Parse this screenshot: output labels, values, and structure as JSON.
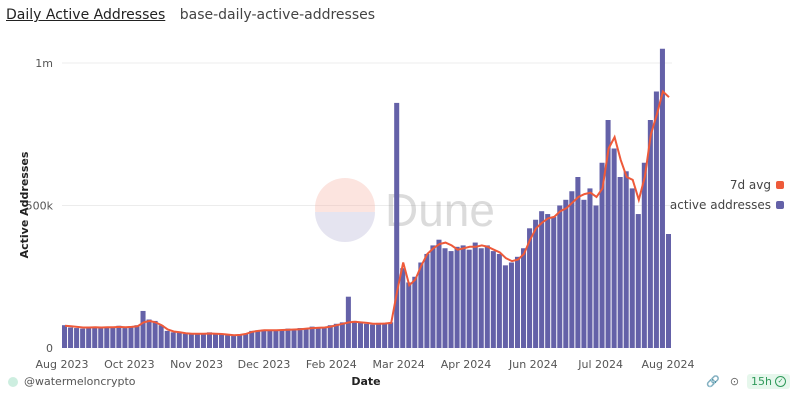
{
  "header": {
    "title": "Daily Active Addresses",
    "subtitle": "base-daily-active-addresses"
  },
  "footer": {
    "user": "@watermeloncrypto",
    "refresh_age": "15h",
    "icons": [
      "link-icon",
      "camera-icon",
      "check-circle-icon"
    ]
  },
  "watermark": "Dune",
  "colors": {
    "bars": "#6461a8",
    "avg": "#ee5a3a",
    "grid": "#ececec"
  },
  "chart_data": {
    "type": "bar",
    "title": "Daily Active Addresses",
    "xlabel": "Date",
    "ylabel": "Active Addresses",
    "ylim": [
      0,
      1050000
    ],
    "y_ticks": [
      {
        "value": 0,
        "label": "0"
      },
      {
        "value": 500000,
        "label": "500k"
      },
      {
        "value": 1000000,
        "label": "1m"
      }
    ],
    "x_ticks": [
      "Aug 2023",
      "Oct 2023",
      "Nov 2023",
      "Dec 2023",
      "Feb 2024",
      "Mar 2024",
      "Apr 2024",
      "Jun 2024",
      "Jul 2024",
      "Aug 2024"
    ],
    "grid": true,
    "legend_position": "right",
    "legend": [
      "7d avg",
      "active addresses"
    ],
    "series": [
      {
        "name": "active addresses",
        "type": "bar",
        "values": [
          80000,
          72000,
          70000,
          68000,
          72000,
          75000,
          70000,
          74000,
          72000,
          78000,
          70000,
          75000,
          80000,
          130000,
          100000,
          95000,
          80000,
          60000,
          55000,
          55000,
          50000,
          52000,
          48000,
          50000,
          55000,
          52000,
          48000,
          45000,
          42000,
          45000,
          50000,
          60000,
          62000,
          65000,
          62000,
          60000,
          65000,
          68000,
          62000,
          70000,
          68000,
          75000,
          72000,
          70000,
          80000,
          85000,
          90000,
          180000,
          95000,
          88000,
          85000,
          82000,
          88000,
          85000,
          90000,
          860000,
          280000,
          230000,
          250000,
          300000,
          330000,
          360000,
          380000,
          350000,
          340000,
          355000,
          360000,
          345000,
          370000,
          350000,
          360000,
          340000,
          330000,
          290000,
          300000,
          320000,
          350000,
          420000,
          450000,
          480000,
          470000,
          460000,
          500000,
          520000,
          550000,
          600000,
          520000,
          560000,
          500000,
          650000,
          800000,
          700000,
          600000,
          620000,
          560000,
          470000,
          650000,
          800000,
          900000,
          1050000,
          400000
        ]
      },
      {
        "name": "7d avg",
        "type": "line",
        "values": [
          78000,
          76000,
          74000,
          72000,
          72000,
          73000,
          72000,
          73000,
          73000,
          74000,
          73000,
          74000,
          76000,
          90000,
          95000,
          90000,
          80000,
          65000,
          58000,
          55000,
          52000,
          50000,
          50000,
          50000,
          51000,
          50000,
          49000,
          47000,
          45000,
          46000,
          50000,
          57000,
          60000,
          62000,
          62000,
          62000,
          63000,
          64000,
          65000,
          66000,
          68000,
          70000,
          71000,
          72000,
          75000,
          80000,
          85000,
          90000,
          92000,
          90000,
          88000,
          85000,
          85000,
          86000,
          88000,
          200000,
          300000,
          220000,
          240000,
          290000,
          330000,
          350000,
          365000,
          370000,
          360000,
          345000,
          350000,
          355000,
          355000,
          360000,
          355000,
          345000,
          335000,
          315000,
          305000,
          310000,
          330000,
          380000,
          420000,
          440000,
          455000,
          460000,
          480000,
          490000,
          510000,
          530000,
          540000,
          545000,
          530000,
          560000,
          700000,
          740000,
          660000,
          600000,
          590000,
          520000,
          600000,
          750000,
          820000,
          900000,
          880000
        ]
      }
    ]
  }
}
